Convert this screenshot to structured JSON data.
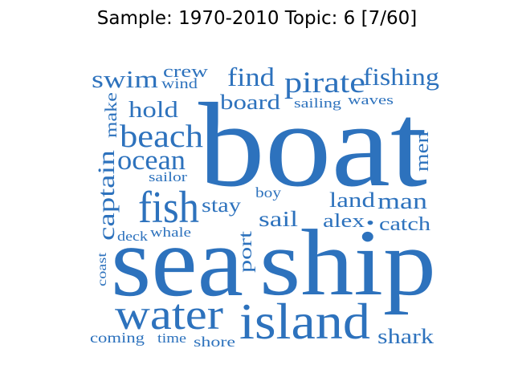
{
  "title": "Sample: 1970-2010 Topic: 6 [7/60]",
  "colors": {
    "word": "#2d72bd",
    "title": "#000000",
    "background": "#ffffff"
  },
  "words": [
    {
      "text": "boat",
      "weight": 1.0,
      "vertical": false
    },
    {
      "text": "ship",
      "weight": 0.92,
      "vertical": false
    },
    {
      "text": "sea",
      "weight": 0.9,
      "vertical": false
    },
    {
      "text": "island",
      "weight": 0.55,
      "vertical": false
    },
    {
      "text": "water",
      "weight": 0.55,
      "vertical": false
    },
    {
      "text": "fish",
      "weight": 0.4,
      "vertical": false
    },
    {
      "text": "beach",
      "weight": 0.38,
      "vertical": false
    },
    {
      "text": "pirate",
      "weight": 0.36,
      "vertical": false
    },
    {
      "text": "find",
      "weight": 0.3,
      "vertical": false
    },
    {
      "text": "fishing",
      "weight": 0.3,
      "vertical": false
    },
    {
      "text": "ocean",
      "weight": 0.3,
      "vertical": false
    },
    {
      "text": "swim",
      "weight": 0.3,
      "vertical": false
    },
    {
      "text": "captain",
      "weight": 0.3,
      "vertical": true
    },
    {
      "text": "hold",
      "weight": 0.28,
      "vertical": false
    },
    {
      "text": "board",
      "weight": 0.26,
      "vertical": false
    },
    {
      "text": "man",
      "weight": 0.28,
      "vertical": false
    },
    {
      "text": "land",
      "weight": 0.26,
      "vertical": false
    },
    {
      "text": "shark",
      "weight": 0.26,
      "vertical": false
    },
    {
      "text": "sail",
      "weight": 0.26,
      "vertical": false
    },
    {
      "text": "stay",
      "weight": 0.24,
      "vertical": false
    },
    {
      "text": "port",
      "weight": 0.24,
      "vertical": true
    },
    {
      "text": "alex",
      "weight": 0.24,
      "vertical": false
    },
    {
      "text": "catch",
      "weight": 0.24,
      "vertical": false
    },
    {
      "text": "men",
      "weight": 0.24,
      "vertical": true
    },
    {
      "text": "make",
      "weight": 0.2,
      "vertical": true
    },
    {
      "text": "crew",
      "weight": 0.2,
      "vertical": false
    },
    {
      "text": "wind",
      "weight": 0.16,
      "vertical": false
    },
    {
      "text": "sailing",
      "weight": 0.16,
      "vertical": false
    },
    {
      "text": "waves",
      "weight": 0.16,
      "vertical": false
    },
    {
      "text": "sailor",
      "weight": 0.16,
      "vertical": false
    },
    {
      "text": "boy",
      "weight": 0.16,
      "vertical": false
    },
    {
      "text": "deck",
      "weight": 0.16,
      "vertical": false
    },
    {
      "text": "whale",
      "weight": 0.16,
      "vertical": false
    },
    {
      "text": "coast",
      "weight": 0.16,
      "vertical": true
    },
    {
      "text": "coming",
      "weight": 0.16,
      "vertical": false
    },
    {
      "text": "time",
      "weight": 0.16,
      "vertical": false
    },
    {
      "text": "shore",
      "weight": 0.16,
      "vertical": false
    },
    {
      "text": "•",
      "weight": 0.12,
      "vertical": false
    }
  ]
}
